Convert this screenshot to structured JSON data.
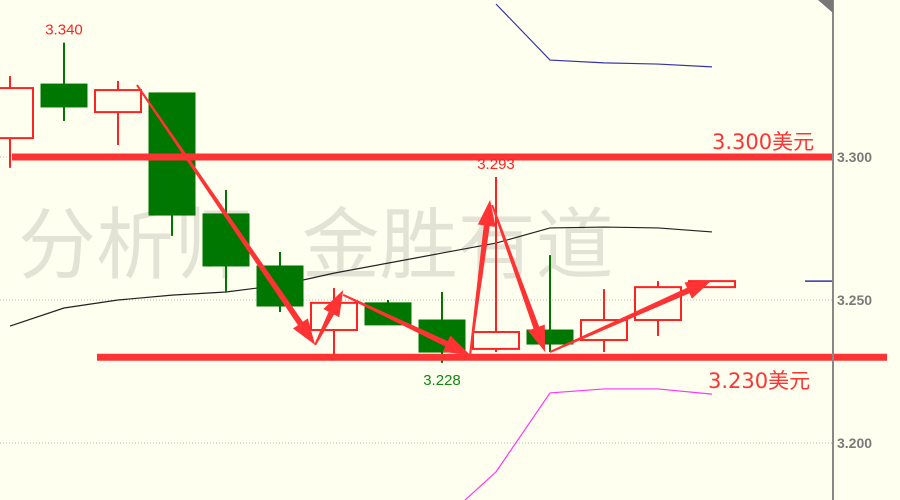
{
  "chart_data": {
    "type": "candlestick",
    "title": "",
    "watermark": "分析师  金胜有道",
    "y_axis": {
      "ticks": [
        "3.300",
        "3.250",
        "3.200"
      ],
      "tick_values": [
        3.3,
        3.25,
        3.2
      ],
      "range": [
        3.179,
        3.355
      ],
      "position": "right",
      "grid": "dotted"
    },
    "colors": {
      "up": "#ff2222",
      "down": "#007700",
      "ma": "#222222",
      "upper_band": "#3333aa",
      "lower_band": "#ff33ff",
      "annotation": "#ff3333",
      "background": "#fffff0"
    },
    "candles": [
      {
        "open": 3.3066,
        "close": 3.3241,
        "high": 3.3283,
        "low": 3.2962
      },
      {
        "open": 3.3255,
        "close": 3.3175,
        "high": 3.34,
        "low": 3.3126
      },
      {
        "open": 3.3157,
        "close": 3.3234,
        "high": 3.3266,
        "low": 3.3042
      },
      {
        "open": 3.3224,
        "close": 3.2797,
        "high": 3.3224,
        "low": 3.2724
      },
      {
        "open": 3.2801,
        "close": 3.2619,
        "high": 3.2885,
        "low": 3.2528
      },
      {
        "open": 3.2619,
        "close": 3.2479,
        "high": 3.2668,
        "low": 3.2458
      },
      {
        "open": 3.2395,
        "close": 3.249,
        "high": 3.2542,
        "low": 3.2304
      },
      {
        "open": 3.249,
        "close": 3.2413,
        "high": 3.25,
        "low": 3.2413
      },
      {
        "open": 3.243,
        "close": 3.2318,
        "high": 3.2528,
        "low": 3.228
      },
      {
        "open": 3.2329,
        "close": 3.2388,
        "high": 3.293,
        "low": 3.2318
      },
      {
        "open": 3.2395,
        "close": 3.2346,
        "high": 3.2657,
        "low": 3.2318
      },
      {
        "open": 3.236,
        "close": 3.243,
        "high": 3.2538,
        "low": 3.2318
      },
      {
        "open": 3.243,
        "close": 3.2545,
        "high": 3.2566,
        "low": 3.2374
      },
      {
        "open": 3.2545,
        "close": 3.2566,
        "high": 3.2566,
        "low": 3.2545
      }
    ],
    "ma": [
      3.2409,
      3.2472,
      3.25,
      3.2517,
      3.2528,
      3.2552,
      3.2594,
      3.2629,
      3.2664,
      3.2699,
      3.2752,
      3.2755,
      3.2752,
      3.2738
    ],
    "upper_band": [
      null,
      null,
      null,
      null,
      null,
      null,
      null,
      null,
      null,
      3.3535,
      3.3339,
      3.3329,
      3.3325,
      3.3315
    ],
    "lower_band": [
      null,
      null,
      null,
      null,
      null,
      null,
      null,
      null,
      3.1727,
      3.1899,
      3.2175,
      3.2189,
      3.2189,
      3.2171
    ],
    "right_marker_value": 3.2566,
    "price_labels": [
      {
        "text": "3.340",
        "candle": 1,
        "value": 3.34,
        "color": "#ff2222",
        "place": "above"
      },
      {
        "text": "3.293",
        "candle": 9,
        "value": 3.293,
        "color": "#ff2222",
        "place": "above"
      },
      {
        "text": "3.228",
        "candle": 8,
        "value": 3.228,
        "color": "#118811",
        "place": "below"
      }
    ],
    "levels": [
      {
        "value": 3.3,
        "label": "3.300美元"
      },
      {
        "value": 3.23,
        "label": "3.230美元"
      }
    ],
    "arrows": [
      {
        "from": [
          2.35,
          3.3252
        ],
        "to": [
          5.65,
          3.2343
        ]
      },
      {
        "from": [
          5.65,
          3.2343
        ],
        "to": [
          6.17,
          3.2535
        ]
      },
      {
        "from": [
          6.17,
          3.2518
        ],
        "to": [
          8.52,
          3.2308
        ]
      },
      {
        "from": [
          8.52,
          3.2308
        ],
        "to": [
          8.89,
          3.285
        ]
      },
      {
        "from": [
          8.93,
          3.2832
        ],
        "to": [
          9.91,
          3.2318
        ]
      },
      {
        "from": [
          10.0,
          3.2318
        ],
        "to": [
          13.0,
          3.257
        ]
      }
    ]
  }
}
